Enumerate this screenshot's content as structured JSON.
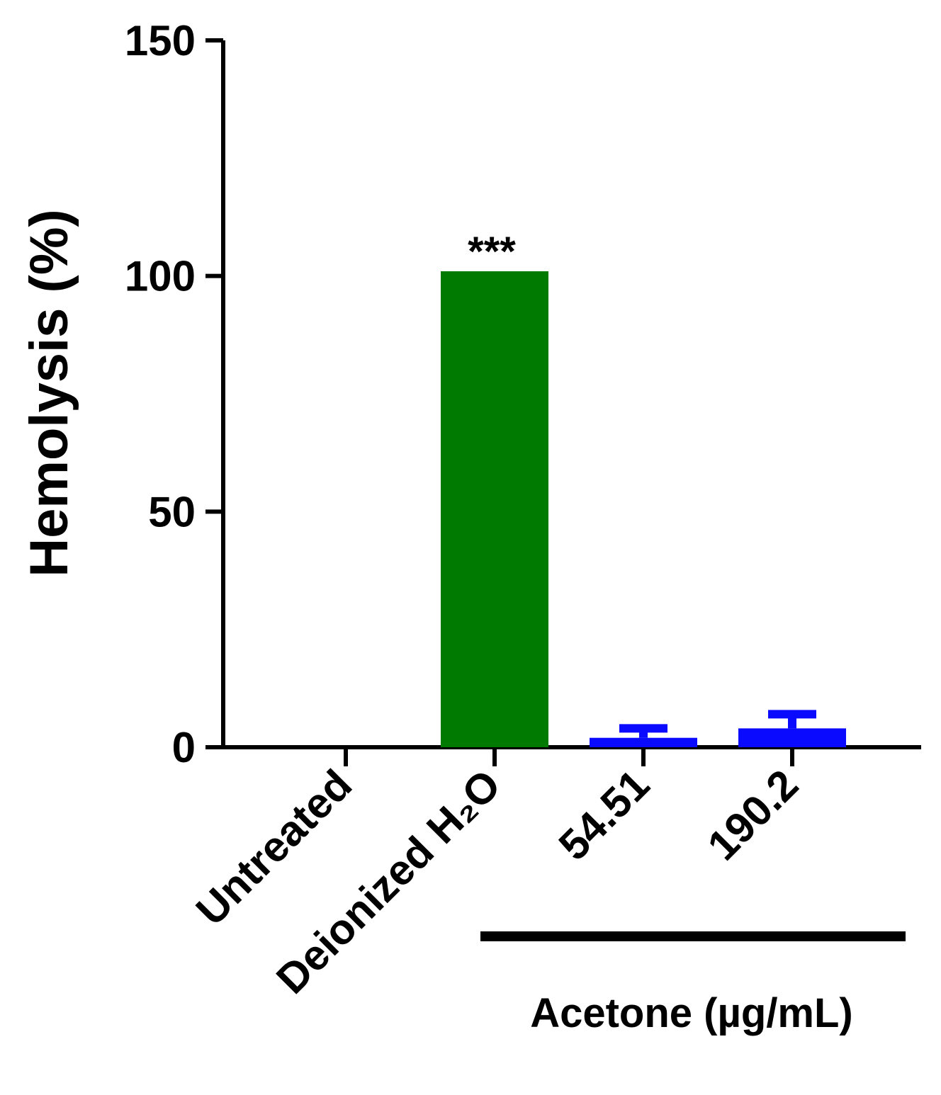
{
  "chart_data": {
    "type": "bar",
    "title": "",
    "xlabel": "",
    "ylabel": "Hemolysis (%)",
    "ylim": [
      0,
      150
    ],
    "yticks": [
      0,
      50,
      100,
      150
    ],
    "categories": [
      "Untreated",
      "Deionized H₂O",
      "54.51",
      "190.2"
    ],
    "values": [
      0,
      101,
      2,
      4
    ],
    "errors": [
      0,
      0,
      2,
      3
    ],
    "colors": [
      "#ffffff",
      "#007a00",
      "#0a0aff",
      "#0a0aff"
    ],
    "annotations": [
      {
        "category": "Deionized H₂O",
        "text": "***"
      }
    ],
    "group": {
      "label": "Acetone (µg/mL)",
      "categories": [
        "54.51",
        "190.2"
      ]
    },
    "grid": false,
    "legend": "none"
  }
}
